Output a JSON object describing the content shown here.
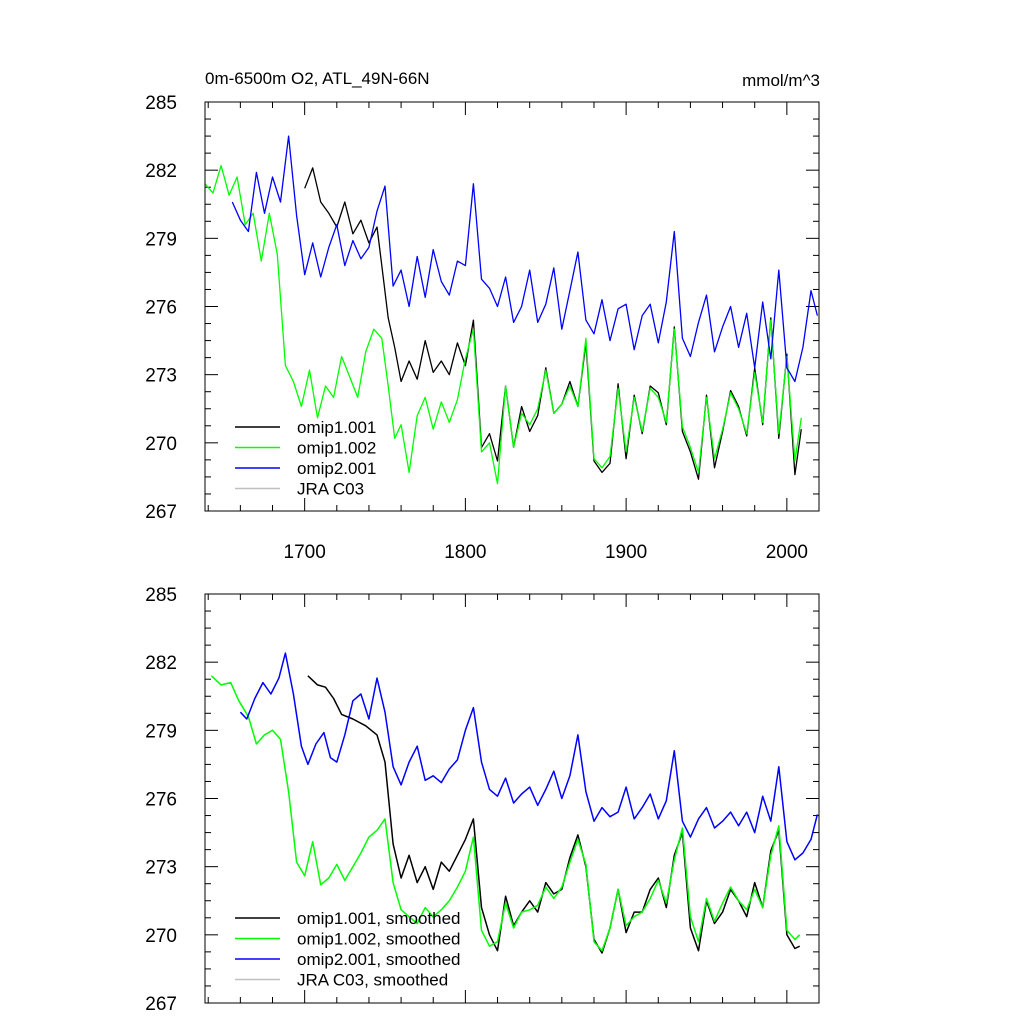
{
  "chart_data": [
    {
      "type": "line",
      "title_left": "0m-6500m O2, ATL_49N-66N",
      "title_right": "mmol/m^3",
      "xlim": [
        1638,
        2020
      ],
      "ylim": [
        267,
        285
      ],
      "x_ticks": [
        1700,
        1800,
        1900,
        2000
      ],
      "x_tick_labels": [
        "1700",
        "1800",
        "1900",
        "2000"
      ],
      "y_ticks": [
        267,
        270,
        273,
        276,
        279,
        282,
        285
      ],
      "y_tick_labels": [
        "267",
        "270",
        "273",
        "276",
        "279",
        "282",
        "285"
      ],
      "legend_position": "bottom-left",
      "legend": [
        "omip1.001",
        "omip1.002",
        "omip2.001",
        "JRA C03"
      ],
      "series": [
        {
          "name": "omip1.001",
          "color": "#000000",
          "x": [
            1700,
            1705,
            1710,
            1715,
            1720,
            1725,
            1730,
            1735,
            1740,
            1745,
            1748,
            1752,
            1756,
            1760,
            1765,
            1770,
            1775,
            1780,
            1785,
            1790,
            1795,
            1800,
            1805,
            1810,
            1815,
            1820,
            1825,
            1830,
            1835,
            1840,
            1845,
            1850,
            1855,
            1860,
            1865,
            1870,
            1875,
            1880,
            1885,
            1890,
            1895,
            1900,
            1905,
            1910,
            1915,
            1920,
            1925,
            1930,
            1935,
            1940,
            1945,
            1950,
            1955,
            1960,
            1965,
            1970,
            1975,
            1980,
            1985,
            1990,
            1995,
            2000,
            2005,
            2009
          ],
          "y": [
            281.2,
            282.1,
            280.6,
            280.1,
            279.5,
            280.6,
            279.2,
            279.8,
            278.8,
            279.5,
            277.8,
            275.5,
            274.2,
            272.7,
            273.6,
            272.8,
            274.5,
            273.1,
            273.6,
            273.0,
            274.4,
            273.4,
            275.4,
            269.8,
            270.4,
            269.2,
            272.5,
            269.8,
            271.6,
            270.5,
            271.2,
            273.3,
            271.3,
            271.7,
            272.7,
            271.6,
            274.4,
            269.2,
            268.7,
            269.1,
            272.6,
            269.3,
            272.1,
            270.4,
            272.5,
            272.2,
            270.8,
            275.1,
            270.5,
            269.6,
            268.4,
            272.1,
            268.9,
            270.5,
            272.3,
            271.6,
            270.3,
            273.3,
            270.8,
            275.5,
            270.2,
            273.9,
            268.6,
            270.6
          ]
        },
        {
          "name": "omip1.002",
          "color": "#00ff00",
          "x": [
            1638,
            1643,
            1648,
            1653,
            1658,
            1663,
            1668,
            1673,
            1678,
            1683,
            1688,
            1693,
            1698,
            1703,
            1708,
            1713,
            1718,
            1723,
            1728,
            1733,
            1738,
            1743,
            1748,
            1752,
            1756,
            1760,
            1765,
            1770,
            1775,
            1780,
            1785,
            1790,
            1795,
            1800,
            1805,
            1810,
            1815,
            1820,
            1825,
            1830,
            1835,
            1840,
            1845,
            1850,
            1855,
            1860,
            1865,
            1870,
            1875,
            1880,
            1885,
            1890,
            1895,
            1900,
            1905,
            1910,
            1915,
            1920,
            1925,
            1930,
            1935,
            1940,
            1945,
            1950,
            1955,
            1960,
            1965,
            1970,
            1975,
            1980,
            1985,
            1990,
            1995,
            2000,
            2005,
            2009
          ],
          "y": [
            281.4,
            281.0,
            282.2,
            280.9,
            281.7,
            279.6,
            280.1,
            278.0,
            280.1,
            278.3,
            273.4,
            272.7,
            271.6,
            273.2,
            271.1,
            272.5,
            272.0,
            273.8,
            272.9,
            272.0,
            274.0,
            275.0,
            274.6,
            272.5,
            270.2,
            270.8,
            268.7,
            271.2,
            272.0,
            270.6,
            271.8,
            270.9,
            271.9,
            273.7,
            275.0,
            269.6,
            270.0,
            268.2,
            272.5,
            269.8,
            271.3,
            270.8,
            271.5,
            273.2,
            271.3,
            271.7,
            272.5,
            271.6,
            274.6,
            269.3,
            268.9,
            269.4,
            272.4,
            269.6,
            272.0,
            270.5,
            272.4,
            272.0,
            270.9,
            275.0,
            270.7,
            269.8,
            268.7,
            272.0,
            269.3,
            270.6,
            272.2,
            271.5,
            270.4,
            273.1,
            270.9,
            275.4,
            270.4,
            273.8,
            269.2,
            271.1
          ]
        },
        {
          "name": "omip2.001",
          "color": "#0000ff",
          "x": [
            1655,
            1660,
            1665,
            1670,
            1675,
            1680,
            1685,
            1690,
            1695,
            1700,
            1705,
            1710,
            1715,
            1720,
            1725,
            1730,
            1735,
            1740,
            1745,
            1750,
            1755,
            1760,
            1765,
            1770,
            1775,
            1780,
            1785,
            1790,
            1795,
            1800,
            1805,
            1810,
            1815,
            1820,
            1825,
            1830,
            1835,
            1840,
            1845,
            1850,
            1855,
            1860,
            1865,
            1870,
            1875,
            1880,
            1885,
            1890,
            1895,
            1900,
            1905,
            1910,
            1915,
            1920,
            1925,
            1930,
            1935,
            1940,
            1945,
            1950,
            1955,
            1960,
            1965,
            1970,
            1975,
            1980,
            1985,
            1990,
            1995,
            2000,
            2005,
            2010,
            2015,
            2019
          ],
          "y": [
            280.6,
            279.8,
            279.3,
            281.9,
            280.1,
            281.7,
            280.6,
            283.5,
            280.0,
            277.4,
            278.8,
            277.3,
            278.6,
            279.6,
            277.8,
            278.9,
            278.1,
            278.6,
            280.2,
            281.3,
            276.9,
            277.6,
            276.0,
            278.2,
            276.4,
            278.5,
            277.1,
            276.5,
            278.0,
            277.8,
            281.4,
            277.2,
            276.8,
            276.0,
            277.3,
            275.3,
            276.0,
            277.6,
            275.3,
            276.1,
            277.7,
            275.0,
            276.7,
            278.4,
            275.4,
            274.8,
            276.3,
            274.5,
            275.9,
            276.1,
            274.1,
            275.6,
            276.1,
            274.4,
            276.2,
            279.3,
            274.6,
            273.8,
            275.3,
            276.5,
            274.0,
            275.1,
            276.0,
            274.2,
            275.7,
            273.3,
            276.2,
            273.7,
            277.6,
            273.3,
            272.7,
            274.2,
            276.7,
            275.6
          ]
        },
        {
          "name": "JRA C03",
          "color": "#c0c0c0",
          "x": [],
          "y": []
        }
      ]
    },
    {
      "type": "line",
      "xlim": [
        1638,
        2020
      ],
      "ylim": [
        267,
        285
      ],
      "x_ticks": [
        1700,
        1800,
        1900,
        2000
      ],
      "y_ticks": [
        267,
        270,
        273,
        276,
        279,
        282,
        285
      ],
      "y_tick_labels": [
        "267",
        "270",
        "273",
        "276",
        "279",
        "282",
        "285"
      ],
      "legend_position": "bottom-left",
      "legend": [
        "omip1.001, smoothed",
        "omip1.002, smoothed",
        "omip2.001, smoothed",
        "JRA C03, smoothed"
      ],
      "series": [
        {
          "name": "omip1.001, smoothed",
          "color": "#000000",
          "x": [
            1702,
            1708,
            1713,
            1718,
            1723,
            1730,
            1738,
            1745,
            1750,
            1755,
            1760,
            1765,
            1770,
            1775,
            1780,
            1785,
            1790,
            1795,
            1800,
            1805,
            1810,
            1815,
            1820,
            1825,
            1830,
            1835,
            1840,
            1845,
            1850,
            1855,
            1860,
            1865,
            1870,
            1875,
            1880,
            1885,
            1890,
            1895,
            1900,
            1905,
            1910,
            1915,
            1920,
            1925,
            1930,
            1935,
            1940,
            1945,
            1950,
            1955,
            1960,
            1965,
            1970,
            1975,
            1980,
            1985,
            1990,
            1995,
            2000,
            2005,
            2008
          ],
          "y": [
            281.4,
            281.0,
            280.9,
            280.4,
            279.7,
            279.5,
            279.2,
            278.8,
            277.6,
            274.0,
            272.5,
            273.5,
            272.3,
            273.0,
            272.0,
            273.2,
            272.8,
            273.5,
            274.2,
            275.1,
            271.2,
            270.0,
            269.3,
            271.7,
            270.4,
            271.0,
            271.5,
            271.0,
            272.3,
            271.8,
            272.0,
            273.4,
            274.4,
            273.0,
            269.8,
            269.2,
            270.3,
            272.0,
            270.1,
            271.0,
            271.0,
            272.0,
            272.5,
            271.2,
            273.5,
            274.5,
            270.3,
            269.3,
            271.5,
            270.5,
            271.0,
            272.0,
            271.5,
            270.8,
            272.3,
            271.2,
            273.7,
            274.6,
            270.0,
            269.4,
            269.5
          ]
        },
        {
          "name": "omip1.002, smoothed",
          "color": "#00ff00",
          "x": [
            1642,
            1648,
            1654,
            1659,
            1665,
            1670,
            1675,
            1680,
            1685,
            1690,
            1695,
            1700,
            1705,
            1710,
            1715,
            1720,
            1725,
            1730,
            1735,
            1740,
            1745,
            1750,
            1755,
            1760,
            1765,
            1770,
            1775,
            1780,
            1785,
            1790,
            1795,
            1800,
            1805,
            1810,
            1815,
            1820,
            1825,
            1830,
            1835,
            1840,
            1845,
            1850,
            1855,
            1860,
            1865,
            1870,
            1875,
            1880,
            1885,
            1890,
            1895,
            1900,
            1905,
            1910,
            1915,
            1920,
            1925,
            1930,
            1935,
            1940,
            1945,
            1950,
            1955,
            1960,
            1965,
            1970,
            1975,
            1980,
            1985,
            1990,
            1995,
            2000,
            2005,
            2008
          ],
          "y": [
            281.4,
            281.0,
            281.1,
            280.3,
            279.6,
            278.4,
            278.8,
            279.0,
            278.6,
            276.3,
            273.2,
            272.6,
            274.1,
            272.2,
            272.5,
            273.1,
            272.4,
            273.0,
            273.6,
            274.3,
            274.6,
            275.1,
            272.3,
            271.1,
            270.8,
            270.5,
            271.2,
            270.8,
            271.1,
            271.5,
            272.1,
            272.8,
            274.3,
            270.2,
            269.5,
            269.7,
            271.4,
            270.3,
            271.0,
            271.1,
            271.3,
            272.1,
            271.6,
            272.1,
            273.2,
            274.2,
            273.1,
            269.7,
            269.3,
            270.3,
            272.0,
            270.4,
            270.8,
            271.0,
            271.6,
            272.4,
            271.4,
            273.3,
            274.7,
            270.8,
            269.7,
            271.6,
            270.6,
            271.4,
            272.1,
            271.5,
            271.1,
            272.0,
            271.2,
            273.5,
            274.8,
            270.2,
            269.8,
            270.0
          ]
        },
        {
          "name": "omip2.001, smoothed",
          "color": "#0000ff",
          "x": [
            1660,
            1664,
            1669,
            1674,
            1679,
            1684,
            1688,
            1693,
            1698,
            1702,
            1707,
            1712,
            1716,
            1720,
            1725,
            1730,
            1735,
            1740,
            1745,
            1750,
            1755,
            1760,
            1765,
            1770,
            1775,
            1780,
            1785,
            1790,
            1795,
            1800,
            1805,
            1810,
            1815,
            1820,
            1825,
            1830,
            1835,
            1840,
            1845,
            1850,
            1855,
            1860,
            1865,
            1870,
            1875,
            1880,
            1885,
            1890,
            1895,
            1900,
            1905,
            1910,
            1915,
            1920,
            1925,
            1930,
            1935,
            1940,
            1945,
            1950,
            1955,
            1960,
            1965,
            1970,
            1975,
            1980,
            1985,
            1990,
            1995,
            2000,
            2005,
            2010,
            2015,
            2019
          ],
          "y": [
            279.8,
            279.5,
            280.4,
            281.1,
            280.6,
            281.3,
            282.4,
            280.6,
            278.3,
            277.5,
            278.4,
            278.9,
            277.8,
            277.6,
            278.8,
            280.3,
            280.6,
            279.5,
            281.3,
            279.8,
            277.4,
            276.6,
            277.6,
            278.3,
            276.8,
            277.0,
            276.7,
            277.3,
            277.7,
            279.0,
            280.0,
            277.6,
            276.4,
            276.1,
            276.9,
            275.8,
            276.2,
            276.5,
            275.7,
            276.4,
            277.2,
            276.0,
            277.0,
            278.8,
            276.3,
            275.0,
            275.6,
            275.2,
            275.4,
            276.5,
            275.1,
            275.6,
            276.2,
            275.1,
            275.9,
            278.1,
            275.0,
            274.3,
            275.1,
            275.6,
            274.7,
            275.0,
            275.4,
            274.8,
            275.4,
            274.5,
            276.1,
            275.0,
            277.4,
            274.1,
            273.3,
            273.6,
            274.2,
            275.3
          ]
        },
        {
          "name": "JRA C03, smoothed",
          "color": "#c0c0c0",
          "x": [],
          "y": []
        }
      ]
    }
  ]
}
